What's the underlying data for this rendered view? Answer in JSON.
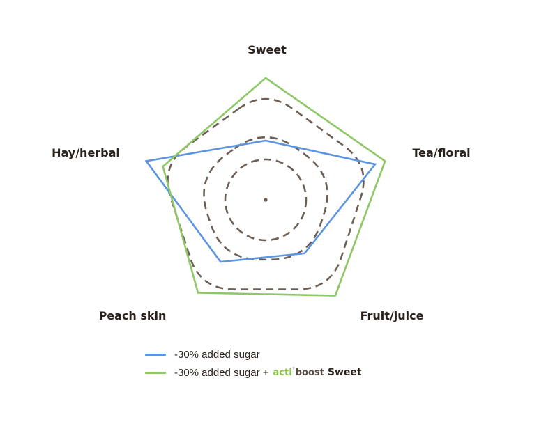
{
  "chart_data": {
    "type": "radar",
    "axes": [
      "Sweet",
      "Tea/floral",
      "Fruit/juice",
      "Peach skin",
      "Hay/herbal"
    ],
    "rlim": [
      0,
      4
    ],
    "grid_levels": [
      1,
      2,
      3
    ],
    "series": [
      {
        "name": "-30% added sugar",
        "color": "#5b95e0",
        "values": [
          1.7,
          3.3,
          1.9,
          2.2,
          3.6
        ]
      },
      {
        "name": "-30% added sugar + acti’boost Sweet",
        "color": "#8dc766",
        "values": [
          3.5,
          3.6,
          3.4,
          3.3,
          3.1
        ]
      }
    ]
  },
  "colors": {
    "grid": "#6e5f55",
    "text": "#2a211c",
    "brand_green": "#8dc743",
    "brand_brown": "#5a4b42"
  },
  "legend": {
    "items": [
      {
        "label": "-30% added sugar",
        "color": "#5b95e0"
      },
      {
        "label": "-30% added sugar +",
        "color": "#8dc766",
        "brand": {
          "acti": "acti",
          "mark": "’",
          "boost": "boost",
          "product": "Sweet"
        }
      }
    ]
  }
}
